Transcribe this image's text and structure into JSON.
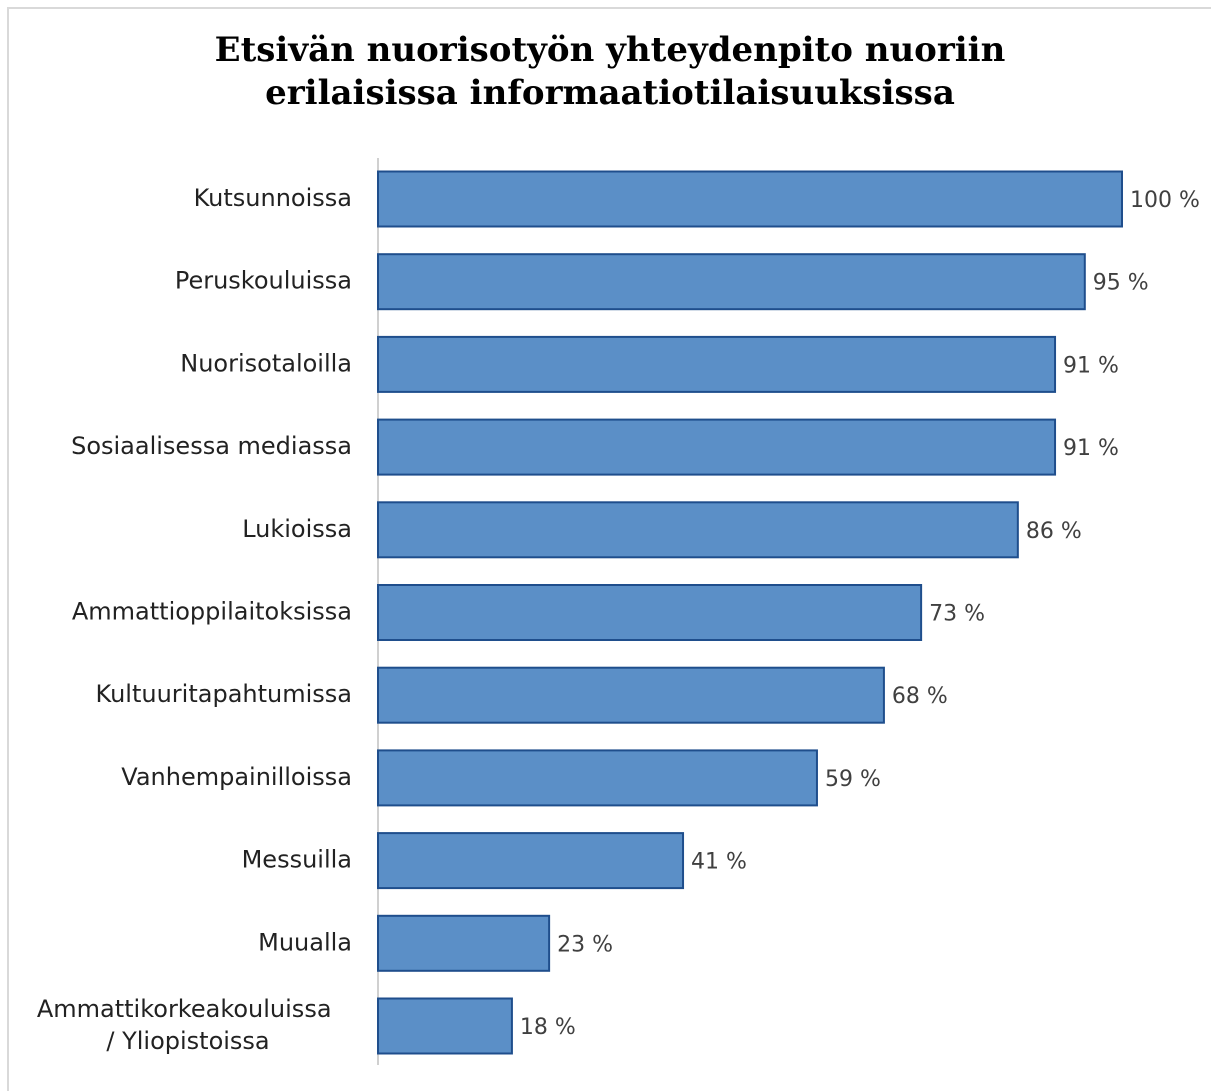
{
  "chart_data": {
    "type": "bar",
    "orientation": "horizontal",
    "title": [
      "Etsivän nuorisotyön yhteydenpito nuoriin",
      "erilaisissa informaatiotilaisuuksissa"
    ],
    "categories": [
      "Kutsunnoissa",
      "Peruskouluissa",
      "Nuorisotaloilla",
      "Sosiaalisessa mediassa",
      "Lukioissa",
      "Ammattioppilaitoksissa",
      "Kultuuritapahtumissa",
      "Vanhempainilloissa",
      "Messuilla",
      "Muualla",
      "Ammattikorkeakouluissa / Yliopistoissa"
    ],
    "values": [
      100,
      95,
      91,
      91,
      86,
      73,
      68,
      59,
      41,
      23,
      18
    ],
    "value_labels": [
      "100 %",
      "95 %",
      "91 %",
      "91 %",
      "86 %",
      "73 %",
      "68 %",
      "59 %",
      "41 %",
      "23 %",
      "18 %"
    ],
    "color": "#5b8fc7",
    "edge_color": "#1f4e8c",
    "xlim": [
      0,
      100
    ]
  }
}
